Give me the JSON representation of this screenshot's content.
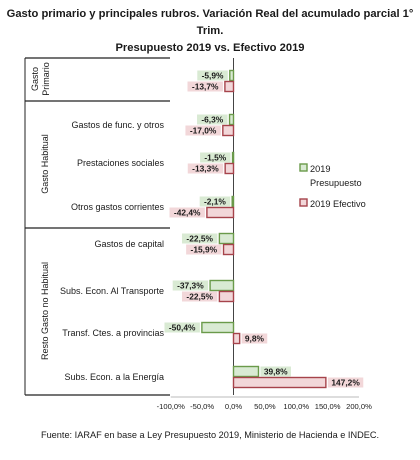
{
  "title_line1": "Gasto primario y principales rubros. Variación Real del acumulado parcial 1° Trim.",
  "title_line2": "Presupuesto 2019 vs. Efectivo 2019",
  "footer": "Fuente: IARAF en base a Ley Presupuesto 2019, Ministerio de Hacienda e INDEC.",
  "colors": {
    "presupuesto_fill": "#d9ead3",
    "presupuesto_stroke": "#6a9a4a",
    "efectivo_fill": "#f2d7d9",
    "efectivo_stroke": "#a6434b"
  },
  "chart_data": {
    "type": "bar",
    "orientation": "horizontal",
    "groups": [
      {
        "name": "Gasto Primario",
        "categories": [
          "Gasto Primario"
        ]
      },
      {
        "name": "Gasto Habitual",
        "categories": [
          "Gastos de func. y otros",
          "Prestaciones sociales",
          "Otros gastos corrientes"
        ]
      },
      {
        "name": "Resto Gasto no Habitual",
        "categories": [
          "Gastos de capital",
          "Subs. Econ. Al Transporte",
          "Transf. Ctes. a provincias",
          "Subs. Econ. a la Energía"
        ]
      }
    ],
    "categories": [
      "Gasto Primario",
      "Gastos de func. y otros",
      "Prestaciones sociales",
      "Otros gastos corrientes",
      "Gastos de capital",
      "Subs. Econ. Al Transporte",
      "Transf. Ctes. a provincias",
      "Subs. Econ. a la Energía"
    ],
    "category_labels": [
      "",
      "Gastos de func. y otros",
      "Prestaciones sociales",
      "Otros gastos corrientes",
      "Gastos de capital",
      "Subs. Econ. Al Transporte",
      "Transf. Ctes. a provincias",
      "Subs. Econ. a la Energía"
    ],
    "series": [
      {
        "name": "2019 Presupuesto",
        "legend_lines": [
          "2019",
          "Presupuesto"
        ],
        "values": [
          -5.9,
          -6.3,
          -1.5,
          -2.1,
          -22.5,
          -37.3,
          -50.4,
          39.8
        ],
        "labels": [
          "-5,9%",
          "-6,3%",
          "-1,5%",
          "-2,1%",
          "-22,5%",
          "-37,3%",
          "-50,4%",
          "39,8%"
        ]
      },
      {
        "name": "2019 Efectivo",
        "legend_lines": [
          "2019 Efectivo"
        ],
        "values": [
          -13.7,
          -17.0,
          -13.3,
          -42.4,
          -15.9,
          -22.5,
          9.8,
          147.2
        ],
        "labels": [
          "-13,7%",
          "-17,0%",
          "-13,3%",
          "-42,4%",
          "-15,9%",
          "-22,5%",
          "9,8%",
          "147,2%"
        ]
      }
    ],
    "xlim": [
      -100,
      200
    ],
    "xticks": [
      -100,
      -50,
      0,
      50,
      100,
      150,
      200
    ],
    "xtick_labels": [
      "-100,0%",
      "-50,0%",
      "0,0%",
      "50,0%",
      "100,0%",
      "150,0%",
      "200,0%"
    ],
    "legend_position": "right",
    "grid": false
  }
}
